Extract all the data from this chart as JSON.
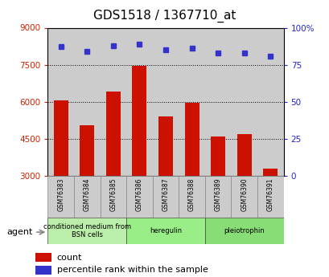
{
  "title": "GDS1518 / 1367710_at",
  "categories": [
    "GSM76383",
    "GSM76384",
    "GSM76385",
    "GSM76386",
    "GSM76387",
    "GSM76388",
    "GSM76389",
    "GSM76390",
    "GSM76391"
  ],
  "counts": [
    6050,
    5050,
    6400,
    7450,
    5400,
    5950,
    4600,
    4680,
    3300
  ],
  "percentiles": [
    87,
    84,
    88,
    89,
    85,
    86,
    83,
    83,
    81
  ],
  "ylim_left": [
    3000,
    9000
  ],
  "ylim_right": [
    0,
    100
  ],
  "yticks_left": [
    3000,
    4500,
    6000,
    7500,
    9000
  ],
  "yticks_right": [
    0,
    25,
    50,
    75,
    100
  ],
  "bar_color": "#cc1100",
  "dot_color": "#3333cc",
  "bar_width": 0.55,
  "groups": [
    {
      "label": "conditioned medium from\nBSN cells",
      "start": 0,
      "end": 3,
      "color": "#bbeeaa"
    },
    {
      "label": "heregulin",
      "start": 3,
      "end": 6,
      "color": "#99ee88"
    },
    {
      "label": "pleiotrophin",
      "start": 6,
      "end": 9,
      "color": "#88dd77"
    }
  ],
  "agent_label": "agent",
  "legend_count_label": "count",
  "legend_percentile_label": "percentile rank within the sample",
  "title_fontsize": 11,
  "axis_label_color_left": "#cc2200",
  "axis_label_color_right": "#2222cc",
  "plot_bg_color": "#ffffff",
  "fig_bg_color": "#ffffff",
  "grid_color": "#000000",
  "sample_bg_color": "#cccccc",
  "group_colors": [
    "#bbeeaa",
    "#99ee88",
    "#88dd77"
  ]
}
